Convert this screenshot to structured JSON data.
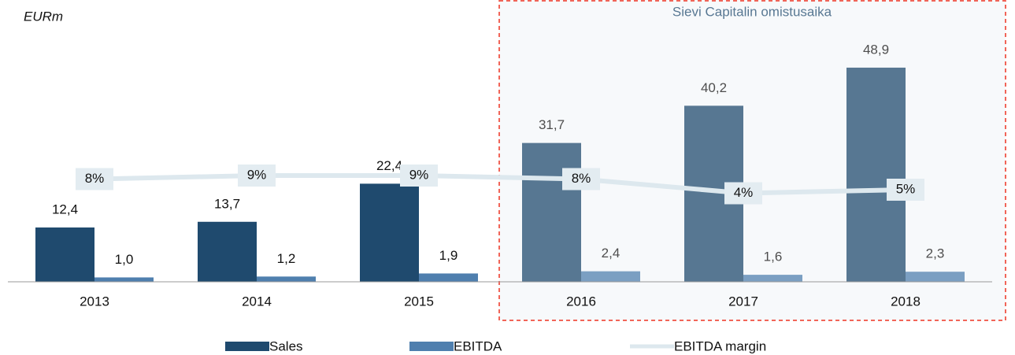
{
  "chart_data": {
    "type": "bar",
    "y_axis_label": "EURm",
    "annotation": "Sievi Capitalin omistusaika",
    "categories": [
      "2013",
      "2014",
      "2015",
      "2016",
      "2017",
      "2018"
    ],
    "series": [
      {
        "name": "Sales",
        "color": "#1f4a6e",
        "values": [
          12.4,
          13.7,
          22.4,
          31.7,
          40.2,
          48.9
        ],
        "value_labels": [
          "12,4",
          "13,7",
          "22,4",
          "31,7",
          "40,2",
          "48,9"
        ]
      },
      {
        "name": "EBITDA",
        "color": "#4f7fae",
        "values": [
          1.0,
          1.2,
          1.9,
          2.4,
          1.6,
          2.3
        ],
        "value_labels": [
          "1,0",
          "1,2",
          "1,9",
          "2,4",
          "1,6",
          "2,3"
        ]
      },
      {
        "name": "EBITDA margin",
        "type": "line",
        "axis": "y2",
        "color": "#dde8ee",
        "values": [
          8,
          9,
          9,
          8,
          4,
          5
        ],
        "value_labels": [
          "8%",
          "9%",
          "9%",
          "8%",
          "4%",
          "5%"
        ]
      }
    ],
    "ylim": [
      0,
      55
    ],
    "y2lim": [
      -21,
      47
    ]
  }
}
